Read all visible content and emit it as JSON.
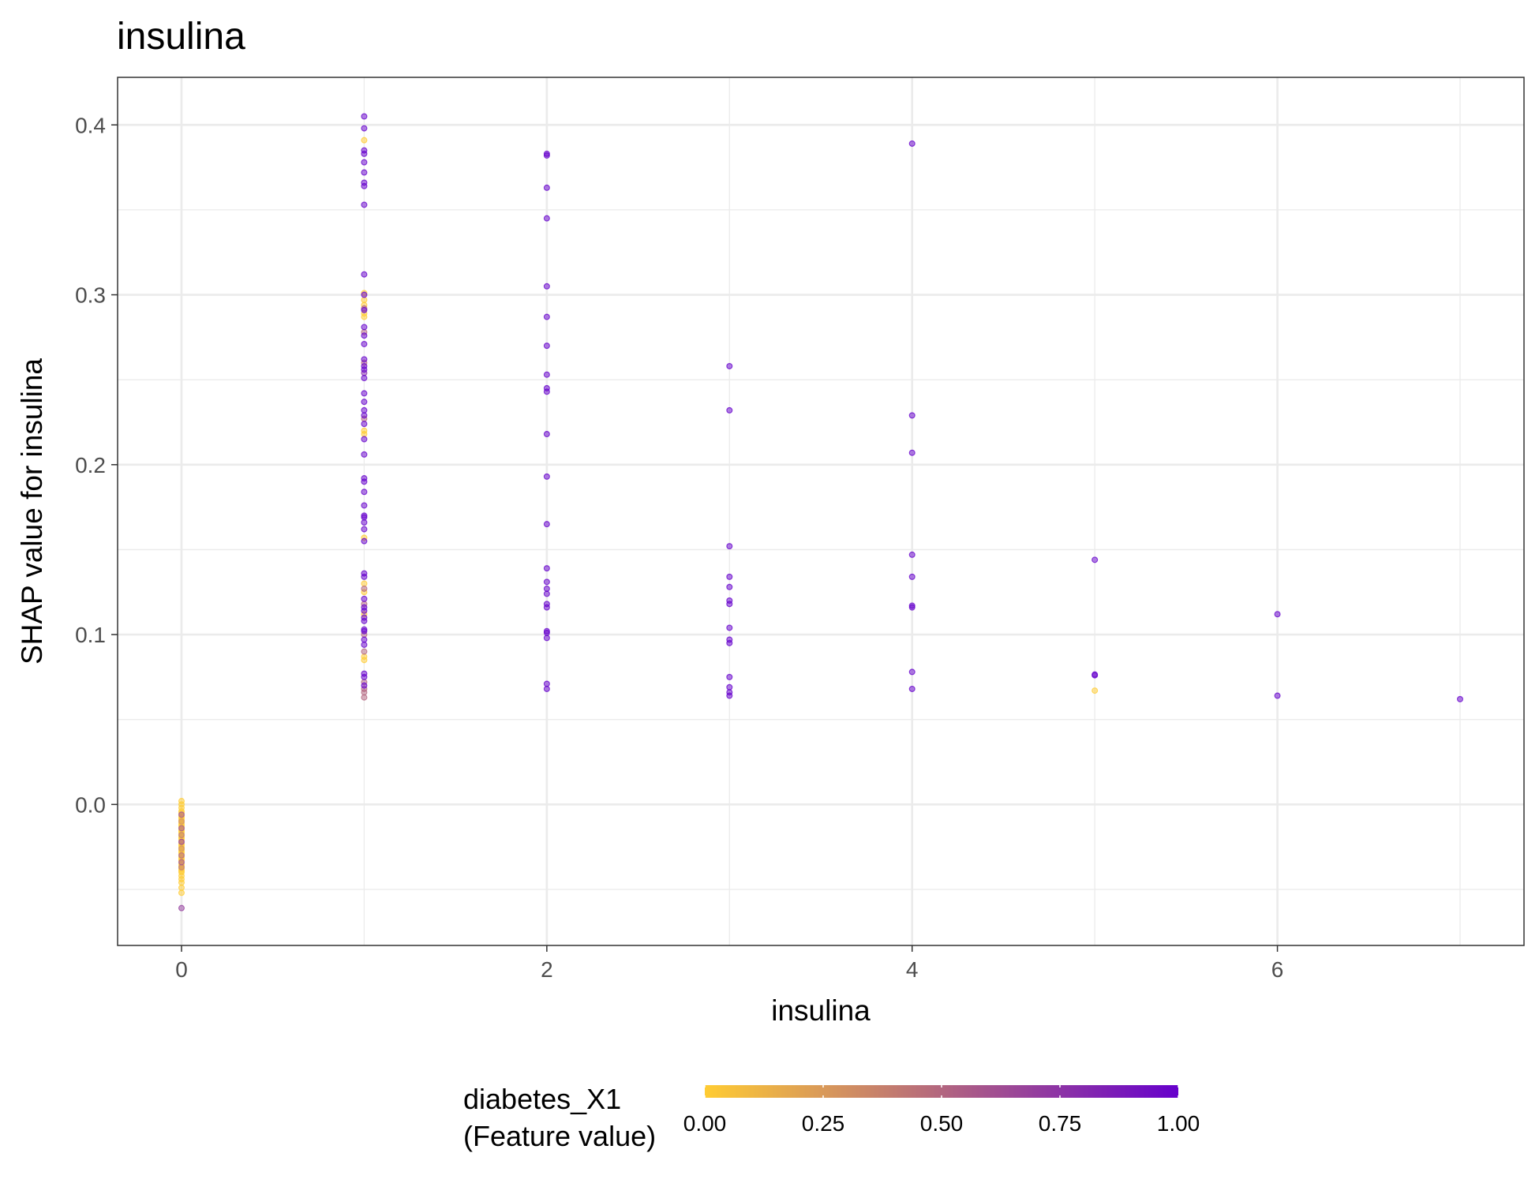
{
  "chart_data": {
    "type": "scatter",
    "title": "insulina",
    "xlabel": "insulina",
    "ylabel": "SHAP value for insulina",
    "xlim": [
      -0.35,
      7.35
    ],
    "ylim": [
      -0.083,
      0.428
    ],
    "x_ticks": [
      0,
      2,
      4,
      6
    ],
    "y_ticks": [
      0.0,
      0.1,
      0.2,
      0.3,
      0.4
    ],
    "x_tick_labels": [
      "0",
      "2",
      "4",
      "6"
    ],
    "y_tick_labels": [
      "0.0",
      "0.1",
      "0.2",
      "0.3",
      "0.4"
    ],
    "grid": true,
    "legend": {
      "position": "bottom",
      "title_line1": "diabetes_X1",
      "title_line2": "(Feature value)",
      "ticks": [
        0,
        0.25,
        0.5,
        0.75,
        1
      ],
      "tick_labels": [
        "0.00",
        "0.25",
        "0.50",
        "0.75",
        "1.00"
      ],
      "color_low": "#FFCC33",
      "color_high": "#6600CC"
    },
    "point_opacity": 0.5,
    "points": [
      {
        "x": 1,
        "y": 0.405,
        "c": 1
      },
      {
        "x": 1,
        "y": 0.398,
        "c": 1
      },
      {
        "x": 1,
        "y": 0.391,
        "c": 0
      },
      {
        "x": 1,
        "y": 0.385,
        "c": 1
      },
      {
        "x": 1,
        "y": 0.383,
        "c": 1
      },
      {
        "x": 1,
        "y": 0.378,
        "c": 1
      },
      {
        "x": 1,
        "y": 0.372,
        "c": 1
      },
      {
        "x": 1,
        "y": 0.366,
        "c": 1
      },
      {
        "x": 1,
        "y": 0.364,
        "c": 1
      },
      {
        "x": 1,
        "y": 0.353,
        "c": 1
      },
      {
        "x": 1,
        "y": 0.312,
        "c": 1
      },
      {
        "x": 1,
        "y": 0.301,
        "c": 0
      },
      {
        "x": 1,
        "y": 0.3,
        "c": 1
      },
      {
        "x": 1,
        "y": 0.297,
        "c": 0
      },
      {
        "x": 1,
        "y": 0.294,
        "c": 0
      },
      {
        "x": 1,
        "y": 0.292,
        "c": 0.5
      },
      {
        "x": 1,
        "y": 0.291,
        "c": 1
      },
      {
        "x": 1,
        "y": 0.289,
        "c": 0
      },
      {
        "x": 1,
        "y": 0.287,
        "c": 0
      },
      {
        "x": 1,
        "y": 0.281,
        "c": 1
      },
      {
        "x": 1,
        "y": 0.278,
        "c": 0.5
      },
      {
        "x": 1,
        "y": 0.276,
        "c": 1
      },
      {
        "x": 1,
        "y": 0.271,
        "c": 1
      },
      {
        "x": 1,
        "y": 0.262,
        "c": 1
      },
      {
        "x": 1,
        "y": 0.26,
        "c": 0.5
      },
      {
        "x": 1,
        "y": 0.258,
        "c": 1
      },
      {
        "x": 1,
        "y": 0.256,
        "c": 1
      },
      {
        "x": 1,
        "y": 0.254,
        "c": 0.8
      },
      {
        "x": 1,
        "y": 0.251,
        "c": 1
      },
      {
        "x": 1,
        "y": 0.242,
        "c": 1
      },
      {
        "x": 1,
        "y": 0.237,
        "c": 1
      },
      {
        "x": 1,
        "y": 0.232,
        "c": 1
      },
      {
        "x": 1,
        "y": 0.229,
        "c": 1
      },
      {
        "x": 1,
        "y": 0.227,
        "c": 0.5
      },
      {
        "x": 1,
        "y": 0.224,
        "c": 1
      },
      {
        "x": 1,
        "y": 0.22,
        "c": 0
      },
      {
        "x": 1,
        "y": 0.218,
        "c": 0
      },
      {
        "x": 1,
        "y": 0.215,
        "c": 1
      },
      {
        "x": 1,
        "y": 0.206,
        "c": 1
      },
      {
        "x": 1,
        "y": 0.192,
        "c": 1
      },
      {
        "x": 1,
        "y": 0.19,
        "c": 1
      },
      {
        "x": 1,
        "y": 0.184,
        "c": 1
      },
      {
        "x": 1,
        "y": 0.176,
        "c": 1
      },
      {
        "x": 1,
        "y": 0.17,
        "c": 1
      },
      {
        "x": 1,
        "y": 0.169,
        "c": 1
      },
      {
        "x": 1,
        "y": 0.166,
        "c": 1
      },
      {
        "x": 1,
        "y": 0.162,
        "c": 1
      },
      {
        "x": 1,
        "y": 0.157,
        "c": 0
      },
      {
        "x": 1,
        "y": 0.155,
        "c": 1
      },
      {
        "x": 1,
        "y": 0.136,
        "c": 1
      },
      {
        "x": 1,
        "y": 0.134,
        "c": 1
      },
      {
        "x": 1,
        "y": 0.13,
        "c": 0
      },
      {
        "x": 1,
        "y": 0.127,
        "c": 0.5
      },
      {
        "x": 1,
        "y": 0.125,
        "c": 0
      },
      {
        "x": 1,
        "y": 0.121,
        "c": 1
      },
      {
        "x": 1,
        "y": 0.118,
        "c": 0.5
      },
      {
        "x": 1,
        "y": 0.116,
        "c": 1
      },
      {
        "x": 1,
        "y": 0.114,
        "c": 1
      },
      {
        "x": 1,
        "y": 0.112,
        "c": 0
      },
      {
        "x": 1,
        "y": 0.11,
        "c": 1
      },
      {
        "x": 1,
        "y": 0.108,
        "c": 1
      },
      {
        "x": 1,
        "y": 0.103,
        "c": 1
      },
      {
        "x": 1,
        "y": 0.102,
        "c": 1
      },
      {
        "x": 1,
        "y": 0.1,
        "c": 0.5
      },
      {
        "x": 1,
        "y": 0.097,
        "c": 1
      },
      {
        "x": 1,
        "y": 0.094,
        "c": 1
      },
      {
        "x": 1,
        "y": 0.09,
        "c": 0.5
      },
      {
        "x": 1,
        "y": 0.087,
        "c": 0
      },
      {
        "x": 1,
        "y": 0.085,
        "c": 0
      },
      {
        "x": 1,
        "y": 0.077,
        "c": 1
      },
      {
        "x": 1,
        "y": 0.075,
        "c": 1
      },
      {
        "x": 1,
        "y": 0.072,
        "c": 0.5
      },
      {
        "x": 1,
        "y": 0.07,
        "c": 1
      },
      {
        "x": 1,
        "y": 0.068,
        "c": 0.5
      },
      {
        "x": 1,
        "y": 0.066,
        "c": 0.5
      },
      {
        "x": 1,
        "y": 0.063,
        "c": 0.5
      },
      {
        "x": 2,
        "y": 0.383,
        "c": 1
      },
      {
        "x": 2,
        "y": 0.382,
        "c": 1
      },
      {
        "x": 2,
        "y": 0.363,
        "c": 1
      },
      {
        "x": 2,
        "y": 0.345,
        "c": 1
      },
      {
        "x": 2,
        "y": 0.305,
        "c": 1
      },
      {
        "x": 2,
        "y": 0.287,
        "c": 1
      },
      {
        "x": 2,
        "y": 0.27,
        "c": 1
      },
      {
        "x": 2,
        "y": 0.253,
        "c": 1
      },
      {
        "x": 2,
        "y": 0.245,
        "c": 1
      },
      {
        "x": 2,
        "y": 0.243,
        "c": 1
      },
      {
        "x": 2,
        "y": 0.218,
        "c": 1
      },
      {
        "x": 2,
        "y": 0.193,
        "c": 1
      },
      {
        "x": 2,
        "y": 0.165,
        "c": 1
      },
      {
        "x": 2,
        "y": 0.139,
        "c": 1
      },
      {
        "x": 2,
        "y": 0.131,
        "c": 1
      },
      {
        "x": 2,
        "y": 0.127,
        "c": 1
      },
      {
        "x": 2,
        "y": 0.124,
        "c": 1
      },
      {
        "x": 2,
        "y": 0.118,
        "c": 1
      },
      {
        "x": 2,
        "y": 0.116,
        "c": 1
      },
      {
        "x": 2,
        "y": 0.102,
        "c": 1
      },
      {
        "x": 2,
        "y": 0.101,
        "c": 1
      },
      {
        "x": 2,
        "y": 0.098,
        "c": 1
      },
      {
        "x": 2,
        "y": 0.071,
        "c": 1
      },
      {
        "x": 2,
        "y": 0.068,
        "c": 1
      },
      {
        "x": 3,
        "y": 0.258,
        "c": 1
      },
      {
        "x": 3,
        "y": 0.232,
        "c": 1
      },
      {
        "x": 3,
        "y": 0.152,
        "c": 1
      },
      {
        "x": 3,
        "y": 0.134,
        "c": 1
      },
      {
        "x": 3,
        "y": 0.128,
        "c": 1
      },
      {
        "x": 3,
        "y": 0.12,
        "c": 1
      },
      {
        "x": 3,
        "y": 0.118,
        "c": 1
      },
      {
        "x": 3,
        "y": 0.104,
        "c": 1
      },
      {
        "x": 3,
        "y": 0.097,
        "c": 1
      },
      {
        "x": 3,
        "y": 0.095,
        "c": 1
      },
      {
        "x": 3,
        "y": 0.075,
        "c": 1
      },
      {
        "x": 3,
        "y": 0.069,
        "c": 1
      },
      {
        "x": 3,
        "y": 0.066,
        "c": 1
      },
      {
        "x": 3,
        "y": 0.064,
        "c": 1
      },
      {
        "x": 4,
        "y": 0.389,
        "c": 1
      },
      {
        "x": 4,
        "y": 0.229,
        "c": 1
      },
      {
        "x": 4,
        "y": 0.207,
        "c": 1
      },
      {
        "x": 4,
        "y": 0.147,
        "c": 1
      },
      {
        "x": 4,
        "y": 0.134,
        "c": 1
      },
      {
        "x": 4,
        "y": 0.117,
        "c": 1
      },
      {
        "x": 4,
        "y": 0.116,
        "c": 1
      },
      {
        "x": 4,
        "y": 0.078,
        "c": 1
      },
      {
        "x": 4,
        "y": 0.068,
        "c": 1
      },
      {
        "x": 5,
        "y": 0.144,
        "c": 1
      },
      {
        "x": 5,
        "y": 0.076,
        "c": 1
      },
      {
        "x": 5,
        "y": 0.0765,
        "c": 1
      },
      {
        "x": 5,
        "y": 0.067,
        "c": 0
      },
      {
        "x": 6,
        "y": 0.112,
        "c": 1
      },
      {
        "x": 6,
        "y": 0.064,
        "c": 1
      },
      {
        "x": 7,
        "y": 0.062,
        "c": 1
      },
      {
        "x": 0,
        "y": 0.002,
        "c": 0
      },
      {
        "x": 0,
        "y": 0.0,
        "c": 0
      },
      {
        "x": 0,
        "y": -0.002,
        "c": 0
      },
      {
        "x": 0,
        "y": -0.004,
        "c": 0
      },
      {
        "x": 0,
        "y": -0.005,
        "c": 0
      },
      {
        "x": 0,
        "y": -0.006,
        "c": 0.6
      },
      {
        "x": 0,
        "y": -0.007,
        "c": 0
      },
      {
        "x": 0,
        "y": -0.008,
        "c": 0
      },
      {
        "x": 0,
        "y": -0.009,
        "c": 0
      },
      {
        "x": 0,
        "y": -0.01,
        "c": 0.3
      },
      {
        "x": 0,
        "y": -0.011,
        "c": 0
      },
      {
        "x": 0,
        "y": -0.012,
        "c": 0
      },
      {
        "x": 0,
        "y": -0.013,
        "c": 0
      },
      {
        "x": 0,
        "y": -0.014,
        "c": 0.6
      },
      {
        "x": 0,
        "y": -0.015,
        "c": 0
      },
      {
        "x": 0,
        "y": -0.016,
        "c": 0
      },
      {
        "x": 0,
        "y": -0.017,
        "c": 0
      },
      {
        "x": 0,
        "y": -0.018,
        "c": 0.4
      },
      {
        "x": 0,
        "y": -0.019,
        "c": 0
      },
      {
        "x": 0,
        "y": -0.02,
        "c": 0
      },
      {
        "x": 0,
        "y": -0.021,
        "c": 0
      },
      {
        "x": 0,
        "y": -0.022,
        "c": 0.7
      },
      {
        "x": 0,
        "y": -0.023,
        "c": 0
      },
      {
        "x": 0,
        "y": -0.024,
        "c": 0
      },
      {
        "x": 0,
        "y": -0.025,
        "c": 0
      },
      {
        "x": 0,
        "y": -0.026,
        "c": 0.3
      },
      {
        "x": 0,
        "y": -0.027,
        "c": 0
      },
      {
        "x": 0,
        "y": -0.028,
        "c": 0
      },
      {
        "x": 0,
        "y": -0.029,
        "c": 0
      },
      {
        "x": 0,
        "y": -0.03,
        "c": 0.5
      },
      {
        "x": 0,
        "y": -0.031,
        "c": 0
      },
      {
        "x": 0,
        "y": -0.032,
        "c": 0
      },
      {
        "x": 0,
        "y": -0.033,
        "c": 0
      },
      {
        "x": 0,
        "y": -0.034,
        "c": 0.6
      },
      {
        "x": 0,
        "y": -0.035,
        "c": 0
      },
      {
        "x": 0,
        "y": -0.036,
        "c": 0
      },
      {
        "x": 0,
        "y": -0.037,
        "c": 0.4
      },
      {
        "x": 0,
        "y": -0.038,
        "c": 0
      },
      {
        "x": 0,
        "y": -0.039,
        "c": 0
      },
      {
        "x": 0,
        "y": -0.04,
        "c": 0
      },
      {
        "x": 0,
        "y": -0.042,
        "c": 0
      },
      {
        "x": 0,
        "y": -0.044,
        "c": 0
      },
      {
        "x": 0,
        "y": -0.046,
        "c": 0
      },
      {
        "x": 0,
        "y": -0.049,
        "c": 0
      },
      {
        "x": 0,
        "y": -0.052,
        "c": 0
      },
      {
        "x": 0,
        "y": -0.061,
        "c": 0.7
      }
    ]
  }
}
